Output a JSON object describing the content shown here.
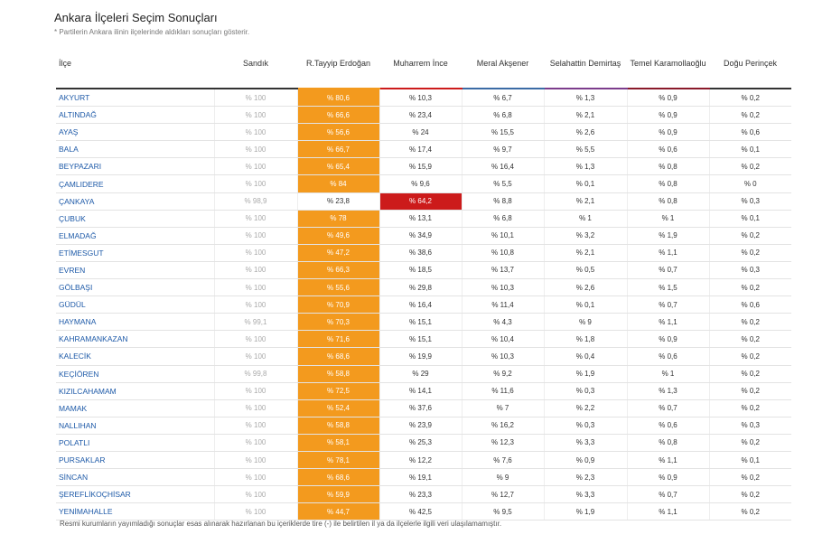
{
  "header": {
    "title": "Ankara İlçeleri Seçim Sonuçları",
    "subtitle": "* Partilerin Ankara ilinin ilçelerinde aldıkları sonuçları gösterir."
  },
  "table": {
    "columns": [
      "İlçe",
      "Sandık",
      "R.Tayyip Erdoğan",
      "Muharrem İnce",
      "Meral Akşener",
      "Selahattin Demirtaş",
      "Temel Karamollaoğlu",
      "Doğu Perinçek"
    ],
    "highlight_colors": [
      "#f39a1e",
      "#cc1b1b"
    ],
    "rows": [
      {
        "cells": [
          "AKYURT",
          "% 100",
          "% 80,6",
          "% 10,3",
          "% 6,7",
          "% 1,3",
          "% 0,9",
          "% 0,2"
        ],
        "highlight": 2
      },
      {
        "cells": [
          "ALTINDAĞ",
          "% 100",
          "% 66,6",
          "% 23,4",
          "% 6,8",
          "% 2,1",
          "% 0,9",
          "% 0,2"
        ],
        "highlight": 2
      },
      {
        "cells": [
          "AYAŞ",
          "% 100",
          "% 56,6",
          "% 24",
          "% 15,5",
          "% 2,6",
          "% 0,9",
          "% 0,6"
        ],
        "highlight": 2
      },
      {
        "cells": [
          "BALA",
          "% 100",
          "% 66,7",
          "% 17,4",
          "% 9,7",
          "% 5,5",
          "% 0,6",
          "% 0,1"
        ],
        "highlight": 2
      },
      {
        "cells": [
          "BEYPAZARI",
          "% 100",
          "% 65,4",
          "% 15,9",
          "% 16,4",
          "% 1,3",
          "% 0,8",
          "% 0,2"
        ],
        "highlight": 2
      },
      {
        "cells": [
          "ÇAMLIDERE",
          "% 100",
          "% 84",
          "% 9,6",
          "% 5,5",
          "% 0,1",
          "% 0,8",
          "% 0"
        ],
        "highlight": 2
      },
      {
        "cells": [
          "ÇANKAYA",
          "% 98,9",
          "% 23,8",
          "% 64,2",
          "% 8,8",
          "% 2,1",
          "% 0,8",
          "% 0,3"
        ],
        "highlight": 3
      },
      {
        "cells": [
          "ÇUBUK",
          "% 100",
          "% 78",
          "% 13,1",
          "% 6,8",
          "% 1",
          "% 1",
          "% 0,1"
        ],
        "highlight": 2
      },
      {
        "cells": [
          "ELMADAĞ",
          "% 100",
          "% 49,6",
          "% 34,9",
          "% 10,1",
          "% 3,2",
          "% 1,9",
          "% 0,2"
        ],
        "highlight": 2
      },
      {
        "cells": [
          "ETİMESGUT",
          "% 100",
          "% 47,2",
          "% 38,6",
          "% 10,8",
          "% 2,1",
          "% 1,1",
          "% 0,2"
        ],
        "highlight": 2
      },
      {
        "cells": [
          "EVREN",
          "% 100",
          "% 66,3",
          "% 18,5",
          "% 13,7",
          "% 0,5",
          "% 0,7",
          "% 0,3"
        ],
        "highlight": 2
      },
      {
        "cells": [
          "GÖLBAŞI",
          "% 100",
          "% 55,6",
          "% 29,8",
          "% 10,3",
          "% 2,6",
          "% 1,5",
          "% 0,2"
        ],
        "highlight": 2
      },
      {
        "cells": [
          "GÜDÜL",
          "% 100",
          "% 70,9",
          "% 16,4",
          "% 11,4",
          "% 0,1",
          "% 0,7",
          "% 0,6"
        ],
        "highlight": 2
      },
      {
        "cells": [
          "HAYMANA",
          "% 99,1",
          "% 70,3",
          "% 15,1",
          "% 4,3",
          "% 9",
          "% 1,1",
          "% 0,2"
        ],
        "highlight": 2
      },
      {
        "cells": [
          "KAHRAMANKAZAN",
          "% 100",
          "% 71,6",
          "% 15,1",
          "% 10,4",
          "% 1,8",
          "% 0,9",
          "% 0,2"
        ],
        "highlight": 2
      },
      {
        "cells": [
          "KALECİK",
          "% 100",
          "% 68,6",
          "% 19,9",
          "% 10,3",
          "% 0,4",
          "% 0,6",
          "% 0,2"
        ],
        "highlight": 2
      },
      {
        "cells": [
          "KEÇİÖREN",
          "% 99,8",
          "% 58,8",
          "% 29",
          "% 9,2",
          "% 1,9",
          "% 1",
          "% 0,2"
        ],
        "highlight": 2
      },
      {
        "cells": [
          "KIZILCAHAMAM",
          "% 100",
          "% 72,5",
          "% 14,1",
          "% 11,6",
          "% 0,3",
          "% 1,3",
          "% 0,2"
        ],
        "highlight": 2
      },
      {
        "cells": [
          "MAMAK",
          "% 100",
          "% 52,4",
          "% 37,6",
          "% 7",
          "% 2,2",
          "% 0,7",
          "% 0,2"
        ],
        "highlight": 2
      },
      {
        "cells": [
          "NALLIHAN",
          "% 100",
          "% 58,8",
          "% 23,9",
          "% 16,2",
          "% 0,3",
          "% 0,6",
          "% 0,3"
        ],
        "highlight": 2
      },
      {
        "cells": [
          "POLATLI",
          "% 100",
          "% 58,1",
          "% 25,3",
          "% 12,3",
          "% 3,3",
          "% 0,8",
          "% 0,2"
        ],
        "highlight": 2
      },
      {
        "cells": [
          "PURSAKLAR",
          "% 100",
          "% 78,1",
          "% 12,2",
          "% 7,6",
          "% 0,9",
          "% 1,1",
          "% 0,1"
        ],
        "highlight": 2
      },
      {
        "cells": [
          "SİNCAN",
          "% 100",
          "% 68,6",
          "% 19,1",
          "% 9",
          "% 2,3",
          "% 0,9",
          "% 0,2"
        ],
        "highlight": 2
      },
      {
        "cells": [
          "ŞEREFLİKOÇHİSAR",
          "% 100",
          "% 59,9",
          "% 23,3",
          "% 12,7",
          "% 3,3",
          "% 0,7",
          "% 0,2"
        ],
        "highlight": 2
      },
      {
        "cells": [
          "YENİMAHALLE",
          "% 100",
          "% 44,7",
          "% 42,5",
          "% 9,5",
          "% 1,9",
          "% 1,1",
          "% 0,2"
        ],
        "highlight": 2
      }
    ]
  },
  "footer": {
    "note": "Resmi kurumların yayımladığı sonuçlar esas alınarak hazırlanan bu içeriklerde tire (-) ile belirtilen il ya da ilçelerle ilgili veri ulaşılamamıştır."
  }
}
